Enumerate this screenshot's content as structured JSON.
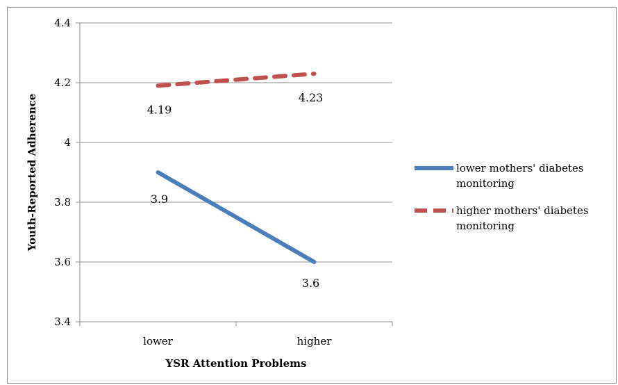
{
  "chart_data": {
    "type": "line",
    "title": "",
    "xlabel": "YSR Attention Problems",
    "ylabel": "Youth-Reported Adherence",
    "categories": [
      "lower",
      "higher"
    ],
    "ylim": [
      3.4,
      4.4
    ],
    "yticks": [
      "3.4",
      "3.6",
      "3.8",
      "4",
      "4.2",
      "4.4"
    ],
    "grid": true,
    "legend_position": "right",
    "series": [
      {
        "name": "lower mothers' diabetes monitoring",
        "name_lines": [
          "lower mothers' diabetes",
          "monitoring"
        ],
        "values": [
          3.9,
          3.6
        ],
        "labels": [
          "3.9",
          "3.6"
        ],
        "color": "#4a7ebb",
        "style": "solid"
      },
      {
        "name": "higher mothers' diabetes monitoring",
        "name_lines": [
          "higher mothers' diabetes",
          "monitoring"
        ],
        "values": [
          4.19,
          4.23
        ],
        "labels": [
          "4.19",
          "4.23"
        ],
        "color": "#c0504d",
        "style": "dashed"
      }
    ]
  }
}
